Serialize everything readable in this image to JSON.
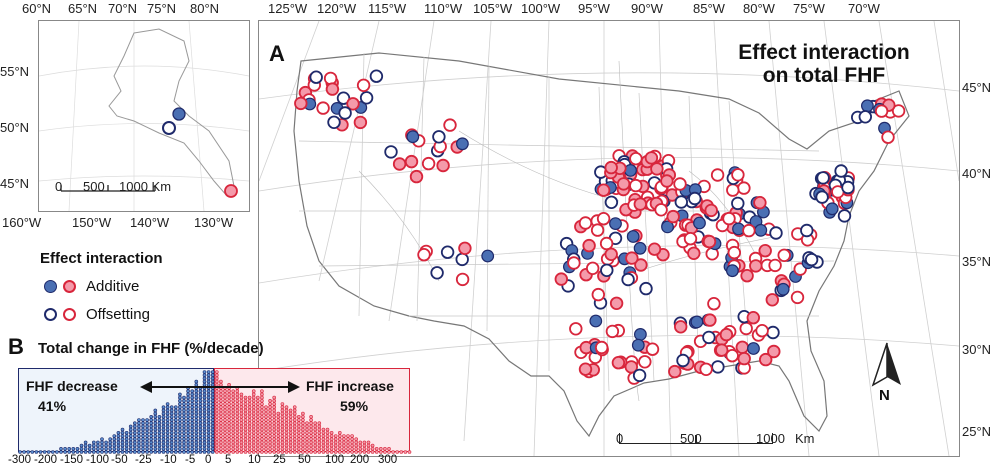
{
  "panel_a": {
    "label": "A",
    "title_line1": "Effect interaction",
    "title_line2": "on total FHF",
    "lon_ticks": [
      "125°W",
      "120°W",
      "115°W",
      "110°W",
      "105°W",
      "100°W",
      "95°W",
      "90°W",
      "85°W",
      "80°W",
      "75°W",
      "70°W"
    ],
    "lat_ticks": [
      "45°N",
      "40°N",
      "35°N",
      "30°N",
      "25°N"
    ],
    "scale": {
      "zero": "0",
      "mid": "500",
      "end": "1000",
      "unit": "Km"
    },
    "north": "N"
  },
  "inset": {
    "top_ticks": [
      "60°N",
      "65°N",
      "70°N",
      "75°N",
      "80°N"
    ],
    "left_ticks": [
      "55°N",
      "50°N",
      "45°N"
    ],
    "bottom_ticks": [
      "160°W",
      "150°W",
      "140°W",
      "130°W"
    ],
    "scale": {
      "zero": "0",
      "mid": "500",
      "end": "1000 Km"
    }
  },
  "legend": {
    "title": "Effect interaction",
    "additive": "Additive",
    "offsetting": "Offsetting",
    "colors": {
      "decrease": "#4a6fb3",
      "increase": "#e8677f",
      "decrease_stroke": "#1f2a6b",
      "increase_stroke": "#d8263c"
    }
  },
  "panel_b": {
    "label": "B",
    "title": "Total change in FHF (%/decade)",
    "decrease_label": "FHF decrease",
    "decrease_pct": "41%",
    "increase_label": "FHF increase",
    "increase_pct": "59%",
    "x_ticks": [
      "-300",
      "-200",
      "-150",
      "-100",
      "-50",
      "-25",
      "-10",
      "-5",
      "0",
      "5",
      "10",
      "25",
      "50",
      "100",
      "200",
      "300"
    ]
  }
}
